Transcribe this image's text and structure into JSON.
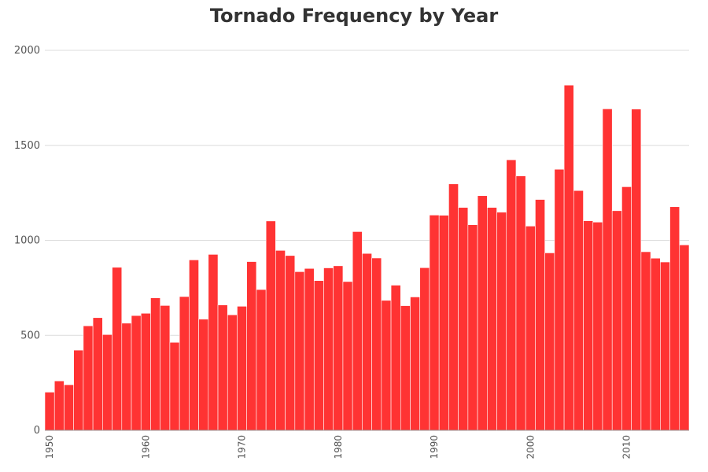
{
  "chart_data": {
    "type": "bar",
    "title": "Tornado Frequency by Year",
    "xlabel": "",
    "ylabel": "",
    "ylim": [
      0,
      2000
    ],
    "yticks": [
      0,
      500,
      1000,
      1500,
      2000
    ],
    "xticks": [
      1950,
      1960,
      1970,
      1980,
      1990,
      2000,
      2010
    ],
    "grid": true,
    "bar_color": "#ff3333",
    "categories": [
      1950,
      1951,
      1952,
      1953,
      1954,
      1955,
      1956,
      1957,
      1958,
      1959,
      1960,
      1961,
      1962,
      1963,
      1964,
      1965,
      1966,
      1967,
      1968,
      1969,
      1970,
      1971,
      1972,
      1973,
      1974,
      1975,
      1976,
      1977,
      1978,
      1979,
      1980,
      1981,
      1982,
      1983,
      1984,
      1985,
      1986,
      1987,
      1988,
      1989,
      1990,
      1991,
      1992,
      1993,
      1994,
      1995,
      1996,
      1997,
      1998,
      1999,
      2000,
      2001,
      2002,
      2003,
      2004,
      2005,
      2006,
      2007,
      2008,
      2009,
      2010,
      2011,
      2012,
      2013,
      2014,
      2015,
      2016
    ],
    "values": [
      201,
      260,
      240,
      422,
      550,
      593,
      504,
      858,
      564,
      604,
      616,
      697,
      657,
      463,
      704,
      897,
      585,
      926,
      660,
      608,
      653,
      888,
      741,
      1102,
      947,
      920,
      835,
      852,
      788,
      855,
      866,
      783,
      1046,
      931,
      907,
      684,
      764,
      656,
      702,
      856,
      1133,
      1132,
      1297,
      1173,
      1082,
      1235,
      1173,
      1148,
      1424,
      1339,
      1075,
      1215,
      934,
      1374,
      1817,
      1262,
      1103,
      1096,
      1692,
      1156,
      1282,
      1691,
      940,
      906,
      886,
      1177,
      976
    ]
  }
}
